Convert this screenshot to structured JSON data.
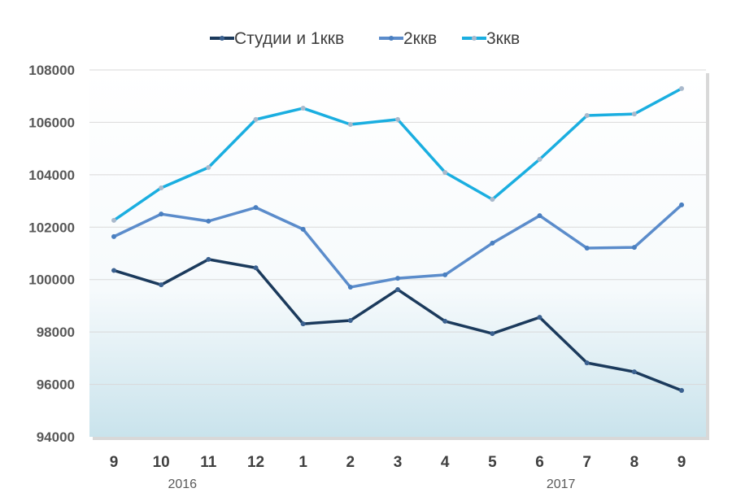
{
  "chart_data": {
    "type": "line",
    "title": "",
    "xlabel": "",
    "ylabel": "",
    "categories": [
      "9",
      "10",
      "11",
      "12",
      "1",
      "2",
      "3",
      "4",
      "5",
      "6",
      "7",
      "8",
      "9"
    ],
    "year_labels": [
      {
        "label": "2016",
        "index": 1.5
      },
      {
        "label": "2017",
        "index": 9.5
      }
    ],
    "ylim": [
      94000,
      108000
    ],
    "yticks": [
      "94000",
      "96000",
      "98000",
      "100000",
      "102000",
      "104000",
      "106000",
      "108000"
    ],
    "grid": true,
    "legend_position": "top",
    "series": [
      {
        "name": "Студии и 1ккв",
        "color": "#1b3a5c",
        "marker": "#3b6190",
        "values": [
          100350,
          99800,
          100770,
          100450,
          98310,
          98440,
          99620,
          98410,
          97940,
          98560,
          96820,
          96480,
          95770
        ]
      },
      {
        "name": "2ккв",
        "color": "#5b8ccb",
        "marker": "#4a7fc0",
        "values": [
          101640,
          102500,
          102230,
          102750,
          101920,
          99710,
          100050,
          100180,
          101390,
          102440,
          101200,
          101230,
          102850
        ]
      },
      {
        "name": "3ккв",
        "color": "#1aaee0",
        "marker": "#a9b9cc",
        "values": [
          102260,
          103500,
          104280,
          106110,
          106540,
          105920,
          106110,
          104090,
          103060,
          104590,
          106260,
          106320,
          107290
        ]
      }
    ]
  }
}
